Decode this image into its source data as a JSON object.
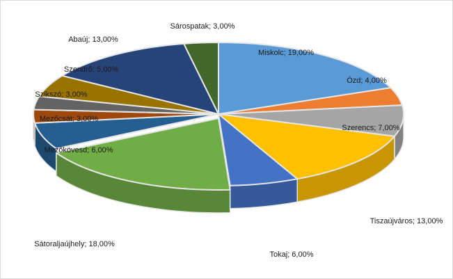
{
  "chart_data": {
    "type": "pie",
    "three_d": true,
    "start_angle_deg": 0,
    "direction": "clockwise",
    "legend": "none",
    "slices": [
      {
        "label": "Miskolc",
        "value": 19.0,
        "value_text": "19,00%",
        "color": "#5b9bd5"
      },
      {
        "label": "Ózd",
        "value": 4.0,
        "value_text": "4,00%",
        "color": "#ed7d31"
      },
      {
        "label": "Szerencs",
        "value": 7.0,
        "value_text": "7,00%",
        "color": "#a5a5a5"
      },
      {
        "label": "Tiszaújváros",
        "value": 13.0,
        "value_text": "13,00%",
        "color": "#ffc000"
      },
      {
        "label": "Tokaj",
        "value": 6.0,
        "value_text": "6,00%",
        "color": "#4472c4"
      },
      {
        "label": "Sátoraljaújhely",
        "value": 18.0,
        "value_text": "18,00%",
        "color": "#70ad47"
      },
      {
        "label": "Mezőkövesd",
        "value": 6.0,
        "value_text": "6,00%",
        "color": "#255e91"
      },
      {
        "label": "Mezőcsát",
        "value": 3.0,
        "value_text": "3,00%",
        "color": "#9e480e"
      },
      {
        "label": "Szikszó",
        "value": 3.0,
        "value_text": "3,00%",
        "color": "#636363"
      },
      {
        "label": "Szendrő",
        "value": 5.0,
        "value_text": "5,00%",
        "color": "#997300"
      },
      {
        "label": "Abaúj",
        "value": 13.0,
        "value_text": "13,00%",
        "color": "#264478"
      },
      {
        "label": "Sárospatak",
        "value": 3.0,
        "value_text": "3,00%",
        "color": "#43682b"
      }
    ]
  }
}
